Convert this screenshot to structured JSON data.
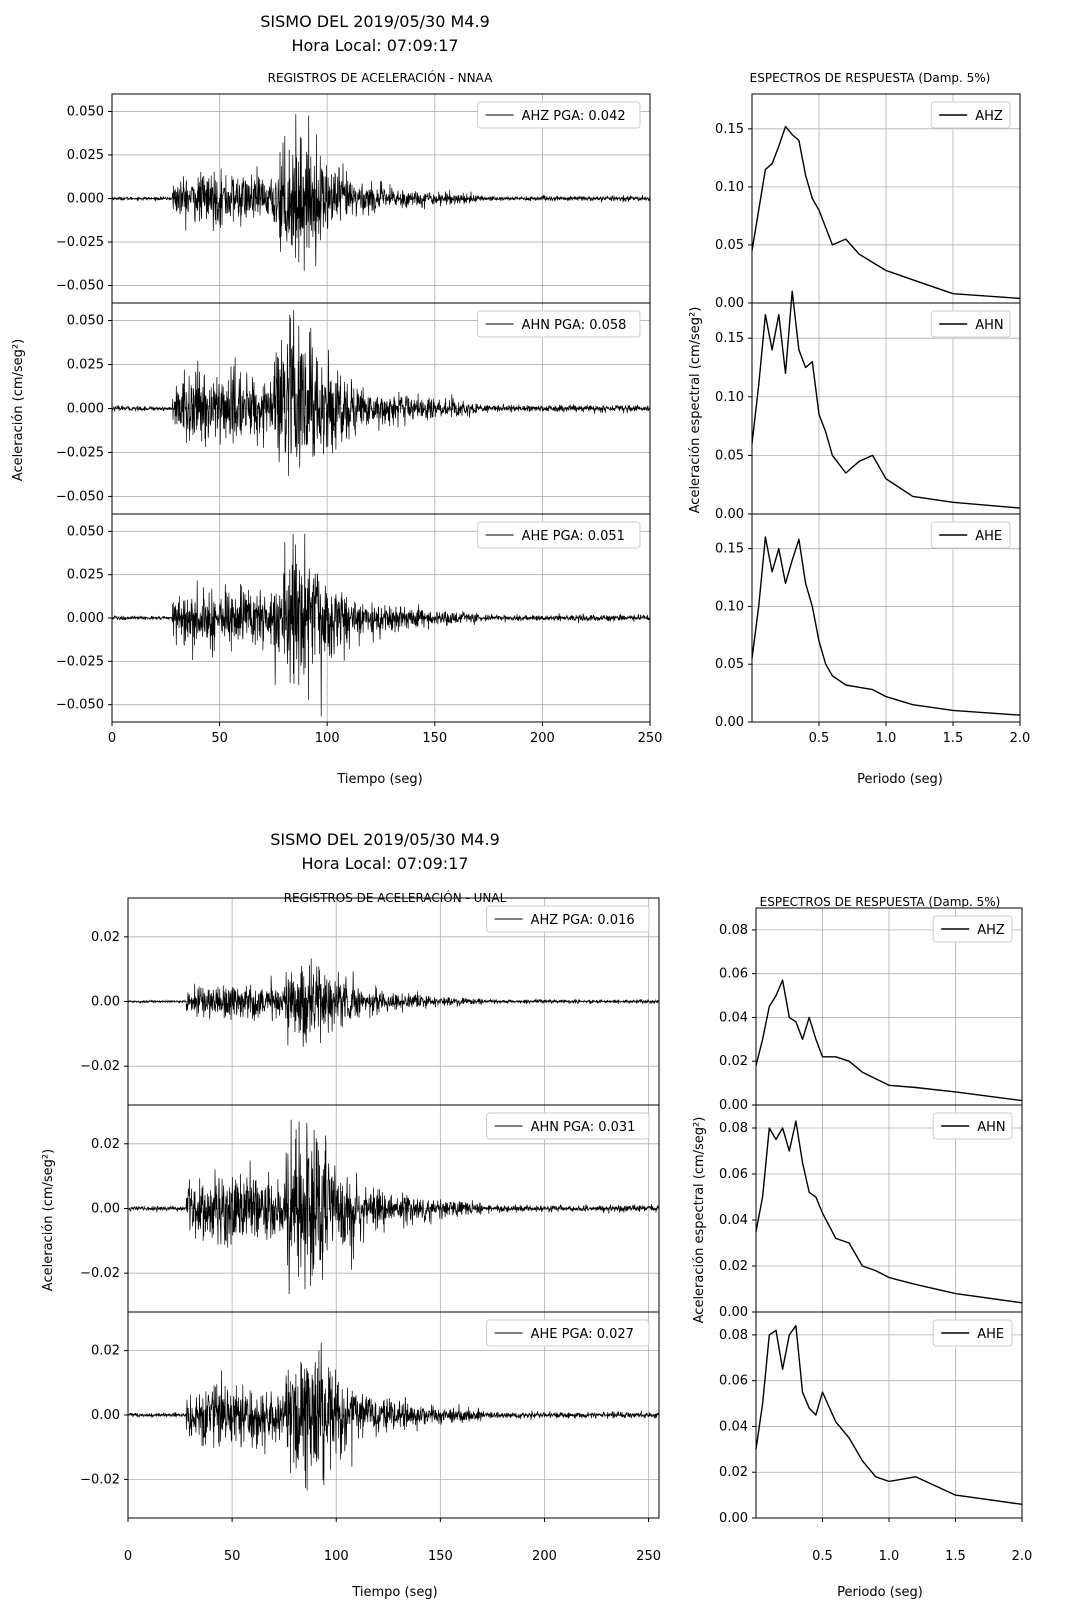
{
  "figures": [
    {
      "title": "SISMO DEL 2019/05/30 M4.9",
      "subtitle": "Hora Local: 07:09:17",
      "left_title": "REGISTROS DE ACELERACIÓN - NNAA",
      "right_title": "ESPECTROS DE RESPUESTA (Damp. 5%)",
      "left_xlabel": "Tiempo (seg)",
      "left_ylabel": "Aceleración (cm/seg²)",
      "right_xlabel": "Periodo (seg)",
      "right_ylabel": "Aceleración espectral (cm/seg²)"
    },
    {
      "title": "SISMO DEL 2019/05/30 M4.9",
      "subtitle": "Hora Local: 07:09:17",
      "left_title": "REGISTROS DE ACELERACIÓN - UNAL",
      "right_title": "ESPECTROS DE RESPUESTA (Damp. 5%)",
      "left_xlabel": "Tiempo (seg)",
      "left_ylabel": "Aceleración (cm/seg²)",
      "right_xlabel": "Periodo (seg)",
      "right_ylabel": "Aceleración espectral (cm/seg²)"
    }
  ],
  "chart_data": [
    {
      "type": "line",
      "station": "NNAA",
      "panel": "time-series",
      "xlim": [
        0,
        250
      ],
      "ylim": [
        -0.06,
        0.06
      ],
      "xticks": [
        "0",
        "50",
        "100",
        "150",
        "200",
        "250"
      ],
      "yticks": [
        "0.050",
        "0.025",
        "0.000",
        "−0.025",
        "−0.050"
      ],
      "ytick_values": [
        0.05,
        0.025,
        0.0,
        -0.025,
        -0.05
      ],
      "xtick_values": [
        0,
        50,
        100,
        150,
        200,
        250
      ],
      "grid": true,
      "legend_position": "top-right",
      "series": [
        {
          "name": "AHZ PGA: 0.042",
          "pga": 0.042
        },
        {
          "name": "AHN PGA: 0.058",
          "pga": 0.058
        },
        {
          "name": "AHE PGA: 0.051",
          "pga": 0.051
        }
      ]
    },
    {
      "type": "line",
      "station": "NNAA",
      "panel": "response-spectra",
      "xlim": [
        0,
        2.0
      ],
      "ylim": [
        0,
        0.18
      ],
      "xticks": [
        "0.5",
        "1.0",
        "1.5",
        "2.0"
      ],
      "xtick_values": [
        0.5,
        1.0,
        1.5,
        2.0
      ],
      "yticks": [
        "0.15",
        "0.10",
        "0.05",
        "0.00"
      ],
      "ytick_values": [
        0.15,
        0.1,
        0.05,
        0.0
      ],
      "grid": true,
      "legend_position": "top-right",
      "series": [
        {
          "name": "AHZ",
          "x": [
            0.0,
            0.05,
            0.1,
            0.15,
            0.2,
            0.25,
            0.3,
            0.35,
            0.4,
            0.45,
            0.5,
            0.55,
            0.6,
            0.7,
            0.8,
            0.9,
            1.0,
            1.2,
            1.5,
            2.0
          ],
          "y": [
            0.045,
            0.08,
            0.115,
            0.12,
            0.135,
            0.152,
            0.145,
            0.14,
            0.11,
            0.09,
            0.08,
            0.065,
            0.05,
            0.055,
            0.042,
            0.035,
            0.028,
            0.02,
            0.008,
            0.004
          ]
        },
        {
          "name": "AHN",
          "x": [
            0.0,
            0.05,
            0.1,
            0.15,
            0.2,
            0.25,
            0.3,
            0.35,
            0.4,
            0.45,
            0.5,
            0.55,
            0.6,
            0.7,
            0.8,
            0.9,
            1.0,
            1.2,
            1.5,
            2.0
          ],
          "y": [
            0.06,
            0.11,
            0.17,
            0.14,
            0.17,
            0.12,
            0.19,
            0.14,
            0.125,
            0.13,
            0.085,
            0.07,
            0.05,
            0.035,
            0.045,
            0.05,
            0.03,
            0.015,
            0.01,
            0.005
          ]
        },
        {
          "name": "AHE",
          "x": [
            0.0,
            0.05,
            0.1,
            0.15,
            0.2,
            0.25,
            0.3,
            0.35,
            0.4,
            0.45,
            0.5,
            0.55,
            0.6,
            0.7,
            0.8,
            0.9,
            1.0,
            1.2,
            1.5,
            2.0
          ],
          "y": [
            0.055,
            0.1,
            0.16,
            0.13,
            0.15,
            0.12,
            0.14,
            0.158,
            0.12,
            0.1,
            0.07,
            0.05,
            0.04,
            0.032,
            0.03,
            0.028,
            0.022,
            0.015,
            0.01,
            0.006
          ]
        }
      ]
    },
    {
      "type": "line",
      "station": "UNAL",
      "panel": "time-series",
      "xlim": [
        0,
        255
      ],
      "ylim": [
        -0.032,
        0.032
      ],
      "xticks": [
        "0",
        "50",
        "100",
        "150",
        "200",
        "250"
      ],
      "xtick_values": [
        0,
        50,
        100,
        150,
        200,
        250
      ],
      "yticks": [
        "0.02",
        "0.00",
        "−0.02"
      ],
      "ytick_values": [
        0.02,
        0.0,
        -0.02
      ],
      "grid": true,
      "legend_position": "top-right",
      "series": [
        {
          "name": "AHZ PGA: 0.016",
          "pga": 0.016
        },
        {
          "name": "AHN PGA: 0.031",
          "pga": 0.031
        },
        {
          "name": "AHE PGA: 0.027",
          "pga": 0.027
        }
      ]
    },
    {
      "type": "line",
      "station": "UNAL",
      "panel": "response-spectra",
      "xlim": [
        0,
        2.0
      ],
      "ylim": [
        0,
        0.09
      ],
      "xticks": [
        "0.5",
        "1.0",
        "1.5",
        "2.0"
      ],
      "xtick_values": [
        0.5,
        1.0,
        1.5,
        2.0
      ],
      "yticks": [
        "0.08",
        "0.06",
        "0.04",
        "0.02",
        "0.00"
      ],
      "ytick_values": [
        0.08,
        0.06,
        0.04,
        0.02,
        0.0
      ],
      "grid": true,
      "legend_position": "top-right",
      "series": [
        {
          "name": "AHZ",
          "x": [
            0.0,
            0.05,
            0.1,
            0.15,
            0.2,
            0.25,
            0.3,
            0.35,
            0.4,
            0.45,
            0.5,
            0.6,
            0.7,
            0.8,
            0.9,
            1.0,
            1.2,
            1.5,
            2.0
          ],
          "y": [
            0.018,
            0.03,
            0.045,
            0.05,
            0.057,
            0.04,
            0.038,
            0.03,
            0.04,
            0.03,
            0.022,
            0.022,
            0.02,
            0.015,
            0.012,
            0.009,
            0.008,
            0.006,
            0.002
          ]
        },
        {
          "name": "AHN",
          "x": [
            0.0,
            0.05,
            0.1,
            0.15,
            0.2,
            0.25,
            0.3,
            0.35,
            0.4,
            0.45,
            0.5,
            0.6,
            0.7,
            0.8,
            0.9,
            1.0,
            1.2,
            1.5,
            2.0
          ],
          "y": [
            0.035,
            0.05,
            0.08,
            0.075,
            0.08,
            0.07,
            0.083,
            0.065,
            0.052,
            0.05,
            0.043,
            0.032,
            0.03,
            0.02,
            0.018,
            0.015,
            0.012,
            0.008,
            0.004
          ]
        },
        {
          "name": "AHE",
          "x": [
            0.0,
            0.05,
            0.1,
            0.15,
            0.2,
            0.25,
            0.3,
            0.35,
            0.4,
            0.45,
            0.5,
            0.6,
            0.7,
            0.8,
            0.9,
            1.0,
            1.2,
            1.5,
            2.0
          ],
          "y": [
            0.03,
            0.05,
            0.08,
            0.082,
            0.065,
            0.08,
            0.084,
            0.055,
            0.048,
            0.045,
            0.055,
            0.042,
            0.035,
            0.025,
            0.018,
            0.016,
            0.018,
            0.01,
            0.006
          ]
        }
      ]
    }
  ]
}
